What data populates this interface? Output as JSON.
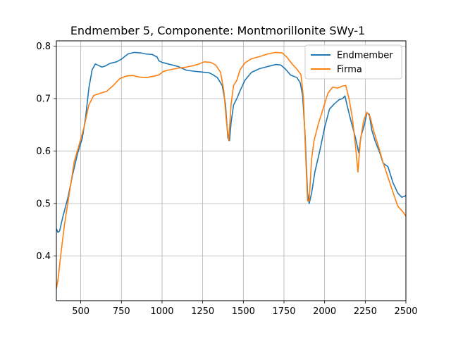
{
  "chart_data": {
    "type": "line",
    "title": "Endmember 5, Componente: Montmorillonite SWy-1",
    "xlabel": "",
    "ylabel": "",
    "xlim": [
      350,
      2500
    ],
    "ylim": [
      0.315,
      0.81
    ],
    "x_ticks": [
      500,
      750,
      1000,
      1250,
      1500,
      1750,
      2000,
      2250,
      2500
    ],
    "y_ticks": [
      0.4,
      0.5,
      0.6,
      0.7,
      0.8
    ],
    "grid": true,
    "legend_position": "top-right",
    "series": [
      {
        "name": "Endmember",
        "color": "#1f77b4",
        "points": [
          [
            350,
            0.452
          ],
          [
            360,
            0.445
          ],
          [
            370,
            0.448
          ],
          [
            390,
            0.475
          ],
          [
            420,
            0.51
          ],
          [
            450,
            0.555
          ],
          [
            480,
            0.595
          ],
          [
            510,
            0.625
          ],
          [
            530,
            0.665
          ],
          [
            550,
            0.72
          ],
          [
            570,
            0.755
          ],
          [
            590,
            0.766
          ],
          [
            610,
            0.763
          ],
          [
            630,
            0.76
          ],
          [
            650,
            0.762
          ],
          [
            680,
            0.767
          ],
          [
            720,
            0.77
          ],
          [
            750,
            0.775
          ],
          [
            790,
            0.785
          ],
          [
            830,
            0.788
          ],
          [
            870,
            0.787
          ],
          [
            900,
            0.785
          ],
          [
            940,
            0.784
          ],
          [
            970,
            0.779
          ],
          [
            980,
            0.772
          ],
          [
            1000,
            0.769
          ],
          [
            1050,
            0.765
          ],
          [
            1100,
            0.761
          ],
          [
            1150,
            0.754
          ],
          [
            1200,
            0.752
          ],
          [
            1230,
            0.751
          ],
          [
            1260,
            0.75
          ],
          [
            1290,
            0.749
          ],
          [
            1310,
            0.746
          ],
          [
            1340,
            0.74
          ],
          [
            1370,
            0.725
          ],
          [
            1390,
            0.69
          ],
          [
            1405,
            0.625
          ],
          [
            1415,
            0.62
          ],
          [
            1425,
            0.655
          ],
          [
            1440,
            0.688
          ],
          [
            1460,
            0.7
          ],
          [
            1480,
            0.715
          ],
          [
            1510,
            0.735
          ],
          [
            1550,
            0.75
          ],
          [
            1600,
            0.757
          ],
          [
            1650,
            0.761
          ],
          [
            1700,
            0.765
          ],
          [
            1730,
            0.764
          ],
          [
            1760,
            0.756
          ],
          [
            1790,
            0.745
          ],
          [
            1830,
            0.74
          ],
          [
            1850,
            0.73
          ],
          [
            1865,
            0.705
          ],
          [
            1880,
            0.63
          ],
          [
            1895,
            0.52
          ],
          [
            1905,
            0.5
          ],
          [
            1920,
            0.52
          ],
          [
            1940,
            0.56
          ],
          [
            1970,
            0.6
          ],
          [
            2000,
            0.645
          ],
          [
            2030,
            0.68
          ],
          [
            2060,
            0.69
          ],
          [
            2090,
            0.698
          ],
          [
            2110,
            0.7
          ],
          [
            2125,
            0.705
          ],
          [
            2140,
            0.685
          ],
          [
            2160,
            0.66
          ],
          [
            2190,
            0.625
          ],
          [
            2210,
            0.597
          ],
          [
            2225,
            0.63
          ],
          [
            2245,
            0.65
          ],
          [
            2260,
            0.673
          ],
          [
            2275,
            0.67
          ],
          [
            2290,
            0.64
          ],
          [
            2310,
            0.62
          ],
          [
            2340,
            0.596
          ],
          [
            2360,
            0.577
          ],
          [
            2390,
            0.57
          ],
          [
            2420,
            0.54
          ],
          [
            2450,
            0.52
          ],
          [
            2475,
            0.512
          ],
          [
            2500,
            0.515
          ]
        ]
      },
      {
        "name": "Firma",
        "color": "#ff7f0e",
        "points": [
          [
            350,
            0.338
          ],
          [
            360,
            0.355
          ],
          [
            380,
            0.41
          ],
          [
            400,
            0.46
          ],
          [
            430,
            0.52
          ],
          [
            460,
            0.58
          ],
          [
            490,
            0.612
          ],
          [
            520,
            0.645
          ],
          [
            550,
            0.688
          ],
          [
            580,
            0.706
          ],
          [
            620,
            0.71
          ],
          [
            660,
            0.714
          ],
          [
            700,
            0.725
          ],
          [
            740,
            0.738
          ],
          [
            780,
            0.743
          ],
          [
            820,
            0.744
          ],
          [
            860,
            0.741
          ],
          [
            900,
            0.74
          ],
          [
            940,
            0.742
          ],
          [
            980,
            0.745
          ],
          [
            1010,
            0.752
          ],
          [
            1050,
            0.755
          ],
          [
            1100,
            0.758
          ],
          [
            1150,
            0.76
          ],
          [
            1180,
            0.762
          ],
          [
            1220,
            0.765
          ],
          [
            1260,
            0.77
          ],
          [
            1300,
            0.769
          ],
          [
            1330,
            0.764
          ],
          [
            1360,
            0.75
          ],
          [
            1380,
            0.715
          ],
          [
            1395,
            0.66
          ],
          [
            1410,
            0.62
          ],
          [
            1425,
            0.69
          ],
          [
            1440,
            0.725
          ],
          [
            1460,
            0.735
          ],
          [
            1480,
            0.755
          ],
          [
            1510,
            0.768
          ],
          [
            1550,
            0.776
          ],
          [
            1600,
            0.78
          ],
          [
            1650,
            0.785
          ],
          [
            1700,
            0.788
          ],
          [
            1740,
            0.787
          ],
          [
            1770,
            0.778
          ],
          [
            1800,
            0.766
          ],
          [
            1830,
            0.756
          ],
          [
            1855,
            0.745
          ],
          [
            1870,
            0.7
          ],
          [
            1885,
            0.58
          ],
          [
            1895,
            0.505
          ],
          [
            1905,
            0.505
          ],
          [
            1920,
            0.585
          ],
          [
            1935,
            0.62
          ],
          [
            1960,
            0.65
          ],
          [
            1990,
            0.68
          ],
          [
            2020,
            0.71
          ],
          [
            2050,
            0.722
          ],
          [
            2080,
            0.72
          ],
          [
            2110,
            0.724
          ],
          [
            2130,
            0.725
          ],
          [
            2150,
            0.7
          ],
          [
            2170,
            0.665
          ],
          [
            2190,
            0.61
          ],
          [
            2205,
            0.56
          ],
          [
            2220,
            0.62
          ],
          [
            2240,
            0.658
          ],
          [
            2260,
            0.674
          ],
          [
            2280,
            0.665
          ],
          [
            2300,
            0.64
          ],
          [
            2330,
            0.61
          ],
          [
            2360,
            0.578
          ],
          [
            2390,
            0.55
          ],
          [
            2420,
            0.522
          ],
          [
            2450,
            0.495
          ],
          [
            2480,
            0.485
          ],
          [
            2500,
            0.476
          ]
        ]
      }
    ]
  }
}
